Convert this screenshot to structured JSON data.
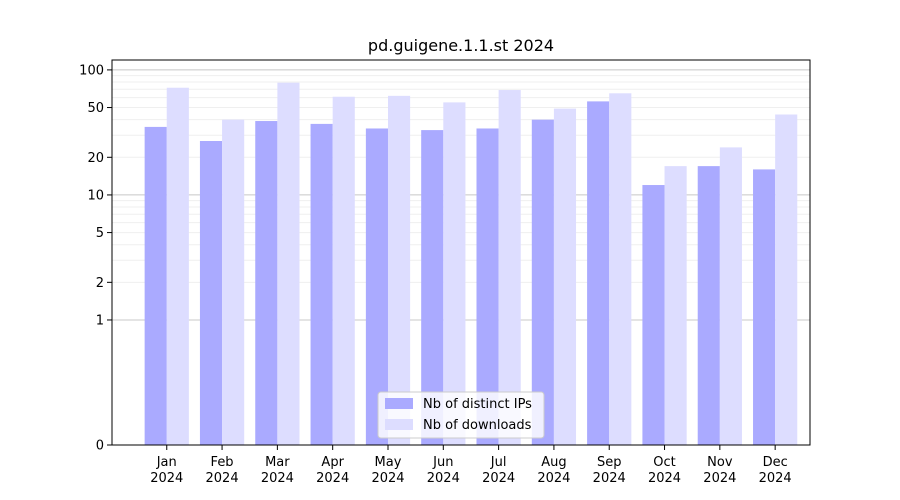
{
  "chart_data": {
    "type": "bar",
    "title": "pd.guigene.1.1.st 2024",
    "xlabel": "",
    "ylabel": "",
    "y_scale": "symlog",
    "y_ticks": [
      0,
      1,
      2,
      5,
      10,
      20,
      50,
      100
    ],
    "ylim": [
      0,
      120
    ],
    "grid": true,
    "legend_position": "lower-center",
    "categories": [
      [
        "Jan",
        "2024"
      ],
      [
        "Feb",
        "2024"
      ],
      [
        "Mar",
        "2024"
      ],
      [
        "Apr",
        "2024"
      ],
      [
        "May",
        "2024"
      ],
      [
        "Jun",
        "2024"
      ],
      [
        "Jul",
        "2024"
      ],
      [
        "Aug",
        "2024"
      ],
      [
        "Sep",
        "2024"
      ],
      [
        "Oct",
        "2024"
      ],
      [
        "Nov",
        "2024"
      ],
      [
        "Dec",
        "2024"
      ]
    ],
    "series": [
      {
        "name": "Nb of distinct IPs",
        "color": "#aaaaff",
        "values": [
          35,
          27,
          39,
          37,
          34,
          33,
          34,
          40,
          56,
          12,
          17,
          16
        ]
      },
      {
        "name": "Nb of downloads",
        "color": "#ddddff",
        "values": [
          72,
          40,
          79,
          61,
          62,
          55,
          69,
          49,
          65,
          17,
          24,
          44
        ]
      }
    ]
  }
}
